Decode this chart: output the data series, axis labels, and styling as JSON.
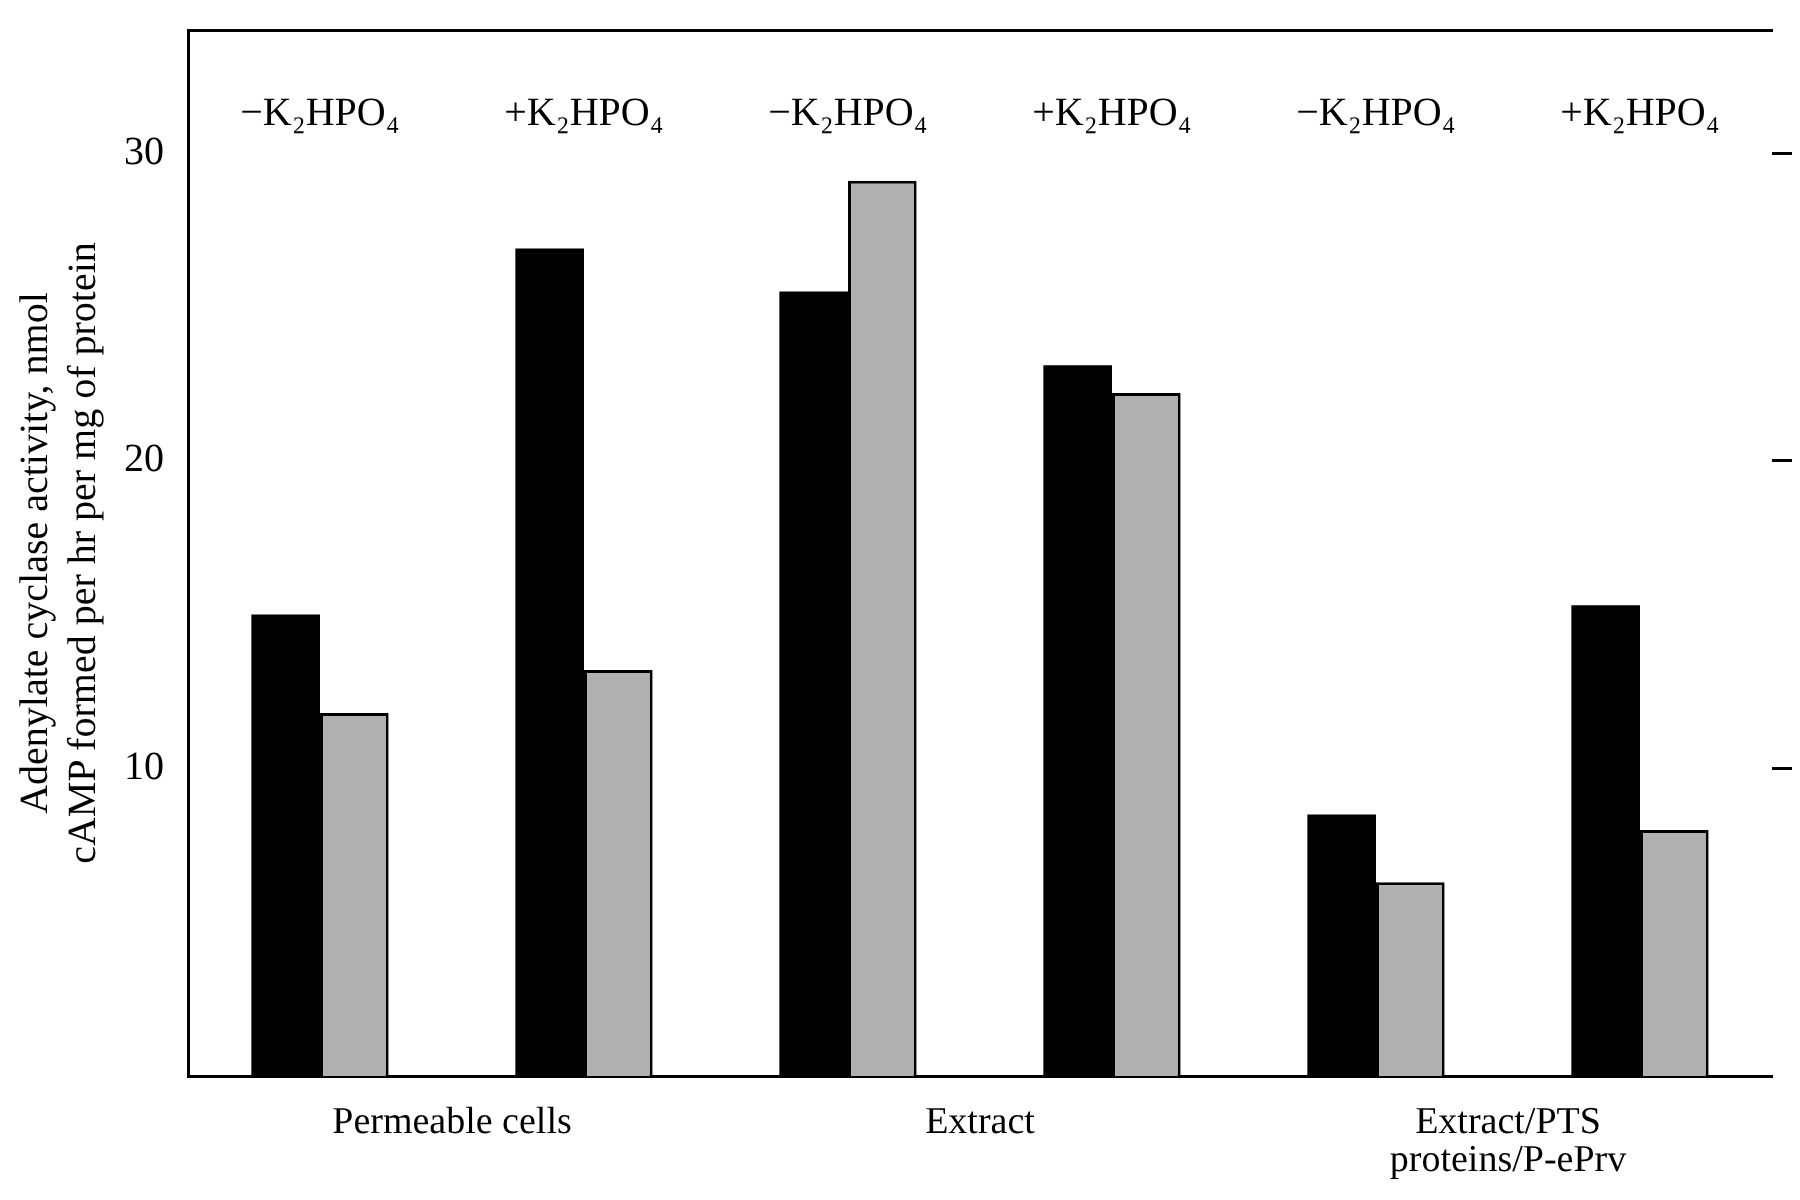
{
  "chart_data": {
    "type": "bar",
    "ylabel": "Adenylate cyclase activity, nmol cAMP formed per hr per mg of protein",
    "categories": [
      "−K₂HPO₄",
      "+K₂HPO₄",
      "−K₂HPO₄",
      "+K₂HPO₄",
      "−K₂HPO₄",
      "+K₂HPO₄"
    ],
    "series": [
      {
        "color": "#000000",
        "values": [
          15.0,
          26.9,
          25.5,
          23.1,
          8.5,
          15.3
        ]
      },
      {
        "color": "#b0b0b0",
        "values": [
          11.8,
          13.2,
          29.1,
          22.2,
          6.3,
          8.0
        ]
      }
    ],
    "ylim": [
      0,
      34
    ],
    "yticks": [
      10,
      20,
      30
    ],
    "grid": false,
    "legend": false,
    "annotations": [
      "Permeable cells",
      "Extract",
      "Extract/PTS proteins/P-ePrv"
    ]
  }
}
